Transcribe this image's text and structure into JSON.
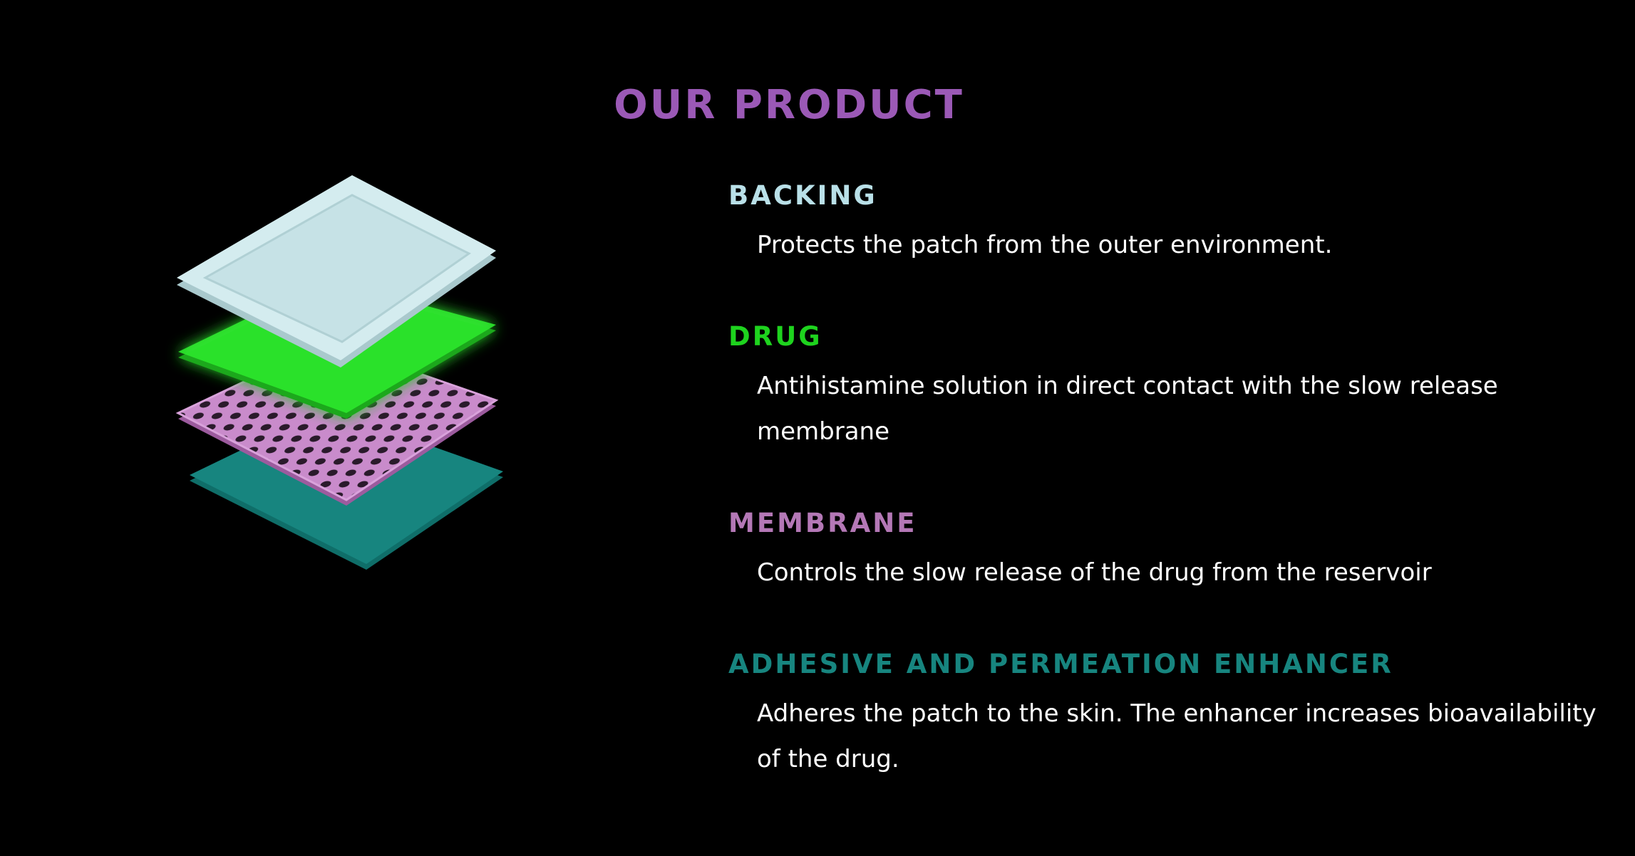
{
  "page": {
    "title": "OUR PRODUCT",
    "title_color": "#9b59b6",
    "background": "#000000"
  },
  "illustration": {
    "icon": "transdermal-patch-exploded-layers-icon",
    "colors": {
      "backing": "#d4ecef",
      "drug": "#2ee62e",
      "membrane": "#c77dc9",
      "adhesive": "#168a83"
    }
  },
  "layers": [
    {
      "id": "backing",
      "title": "BACKING",
      "color": "#b9e0e8",
      "description": "Protects the patch from the outer environment."
    },
    {
      "id": "drug",
      "title": "DRUG",
      "color": "#1ed31e",
      "description": "Antihistamine solution in direct contact with the slow release membrane"
    },
    {
      "id": "membrane",
      "title": "MEMBRANE",
      "color": "#b478b6",
      "description": "Controls the slow release of the drug from the reservoir"
    },
    {
      "id": "adhesive",
      "title": "ADHESIVE AND PERMEATION ENHANCER",
      "color": "#17857f",
      "description": "Adheres the patch to the skin. The enhancer increases bioavailability of the drug."
    }
  ]
}
